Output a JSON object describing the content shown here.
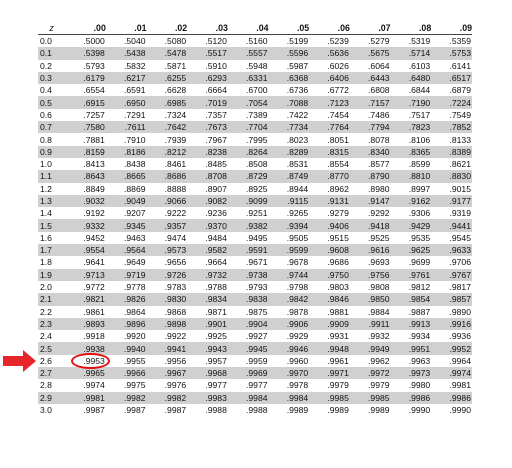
{
  "table": {
    "z_header": "z",
    "columns": [
      ".00",
      ".01",
      ".02",
      ".03",
      ".04",
      ".05",
      ".06",
      ".07",
      ".08",
      ".09"
    ],
    "rows": [
      {
        "z": "0.0",
        "values": [
          ".5000",
          ".5040",
          ".5080",
          ".5120",
          ".5160",
          ".5199",
          ".5239",
          ".5279",
          ".5319",
          ".5359"
        ]
      },
      {
        "z": "0.1",
        "values": [
          ".5398",
          ".5438",
          ".5478",
          ".5517",
          ".5557",
          ".5596",
          ".5636",
          ".5675",
          ".5714",
          ".5753"
        ]
      },
      {
        "z": "0.2",
        "values": [
          ".5793",
          ".5832",
          ".5871",
          ".5910",
          ".5948",
          ".5987",
          ".6026",
          ".6064",
          ".6103",
          ".6141"
        ]
      },
      {
        "z": "0.3",
        "values": [
          ".6179",
          ".6217",
          ".6255",
          ".6293",
          ".6331",
          ".6368",
          ".6406",
          ".6443",
          ".6480",
          ".6517"
        ]
      },
      {
        "z": "0.4",
        "values": [
          ".6554",
          ".6591",
          ".6628",
          ".6664",
          ".6700",
          ".6736",
          ".6772",
          ".6808",
          ".6844",
          ".6879"
        ]
      },
      {
        "z": "0.5",
        "values": [
          ".6915",
          ".6950",
          ".6985",
          ".7019",
          ".7054",
          ".7088",
          ".7123",
          ".7157",
          ".7190",
          ".7224"
        ]
      },
      {
        "z": "0.6",
        "values": [
          ".7257",
          ".7291",
          ".7324",
          ".7357",
          ".7389",
          ".7422",
          ".7454",
          ".7486",
          ".7517",
          ".7549"
        ]
      },
      {
        "z": "0.7",
        "values": [
          ".7580",
          ".7611",
          ".7642",
          ".7673",
          ".7704",
          ".7734",
          ".7764",
          ".7794",
          ".7823",
          ".7852"
        ]
      },
      {
        "z": "0.8",
        "values": [
          ".7881",
          ".7910",
          ".7939",
          ".7967",
          ".7995",
          ".8023",
          ".8051",
          ".8078",
          ".8106",
          ".8133"
        ]
      },
      {
        "z": "0.9",
        "values": [
          ".8159",
          ".8186",
          ".8212",
          ".8238",
          ".8264",
          ".8289",
          ".8315",
          ".8340",
          ".8365",
          ".8389"
        ]
      },
      {
        "z": "1.0",
        "values": [
          ".8413",
          ".8438",
          ".8461",
          ".8485",
          ".8508",
          ".8531",
          ".8554",
          ".8577",
          ".8599",
          ".8621"
        ]
      },
      {
        "z": "1.1",
        "values": [
          ".8643",
          ".8665",
          ".8686",
          ".8708",
          ".8729",
          ".8749",
          ".8770",
          ".8790",
          ".8810",
          ".8830"
        ]
      },
      {
        "z": "1.2",
        "values": [
          ".8849",
          ".8869",
          ".8888",
          ".8907",
          ".8925",
          ".8944",
          ".8962",
          ".8980",
          ".8997",
          ".9015"
        ]
      },
      {
        "z": "1.3",
        "values": [
          ".9032",
          ".9049",
          ".9066",
          ".9082",
          ".9099",
          ".9115",
          ".9131",
          ".9147",
          ".9162",
          ".9177"
        ]
      },
      {
        "z": "1.4",
        "values": [
          ".9192",
          ".9207",
          ".9222",
          ".9236",
          ".9251",
          ".9265",
          ".9279",
          ".9292",
          ".9306",
          ".9319"
        ]
      },
      {
        "z": "1.5",
        "values": [
          ".9332",
          ".9345",
          ".9357",
          ".9370",
          ".9382",
          ".9394",
          ".9406",
          ".9418",
          ".9429",
          ".9441"
        ]
      },
      {
        "z": "1.6",
        "values": [
          ".9452",
          ".9463",
          ".9474",
          ".9484",
          ".9495",
          ".9505",
          ".9515",
          ".9525",
          ".9535",
          ".9545"
        ]
      },
      {
        "z": "1.7",
        "values": [
          ".9554",
          ".9564",
          ".9573",
          ".9582",
          ".9591",
          ".9599",
          ".9608",
          ".9616",
          ".9625",
          ".9633"
        ]
      },
      {
        "z": "1.8",
        "values": [
          ".9641",
          ".9649",
          ".9656",
          ".9664",
          ".9671",
          ".9678",
          ".9686",
          ".9693",
          ".9699",
          ".9706"
        ]
      },
      {
        "z": "1.9",
        "values": [
          ".9713",
          ".9719",
          ".9726",
          ".9732",
          ".9738",
          ".9744",
          ".9750",
          ".9756",
          ".9761",
          ".9767"
        ]
      },
      {
        "z": "2.0",
        "values": [
          ".9772",
          ".9778",
          ".9783",
          ".9788",
          ".9793",
          ".9798",
          ".9803",
          ".9808",
          ".9812",
          ".9817"
        ]
      },
      {
        "z": "2.1",
        "values": [
          ".9821",
          ".9826",
          ".9830",
          ".9834",
          ".9838",
          ".9842",
          ".9846",
          ".9850",
          ".9854",
          ".9857"
        ]
      },
      {
        "z": "2.2",
        "values": [
          ".9861",
          ".9864",
          ".9868",
          ".9871",
          ".9875",
          ".9878",
          ".9881",
          ".9884",
          ".9887",
          ".9890"
        ]
      },
      {
        "z": "2.3",
        "values": [
          ".9893",
          ".9896",
          ".9898",
          ".9901",
          ".9904",
          ".9906",
          ".9909",
          ".9911",
          ".9913",
          ".9916"
        ]
      },
      {
        "z": "2.4",
        "values": [
          ".9918",
          ".9920",
          ".9922",
          ".9925",
          ".9927",
          ".9929",
          ".9931",
          ".9932",
          ".9934",
          ".9936"
        ]
      },
      {
        "z": "2.5",
        "values": [
          ".9938",
          ".9940",
          ".9941",
          ".9943",
          ".9945",
          ".9946",
          ".9948",
          ".9949",
          ".9951",
          ".9952"
        ]
      },
      {
        "z": "2.6",
        "values": [
          ".9953",
          ".9955",
          ".9956",
          ".9957",
          ".9959",
          ".9960",
          ".9961",
          ".9962",
          ".9963",
          ".9964"
        ]
      },
      {
        "z": "2.7",
        "values": [
          ".9965",
          ".9966",
          ".9967",
          ".9968",
          ".9969",
          ".9970",
          ".9971",
          ".9972",
          ".9973",
          ".9974"
        ]
      },
      {
        "z": "2.8",
        "values": [
          ".9974",
          ".9975",
          ".9976",
          ".9977",
          ".9977",
          ".9978",
          ".9979",
          ".9979",
          ".9980",
          ".9981"
        ]
      },
      {
        "z": "2.9",
        "values": [
          ".9981",
          ".9982",
          ".9982",
          ".9983",
          ".9984",
          ".9984",
          ".9985",
          ".9985",
          ".9986",
          ".9986"
        ]
      },
      {
        "z": "3.0",
        "values": [
          ".9987",
          ".9987",
          ".9987",
          ".9988",
          ".9988",
          ".9989",
          ".9989",
          ".9989",
          ".9990",
          ".9990"
        ]
      }
    ]
  },
  "annotation": {
    "arrow_icon": "arrow-right-icon",
    "arrow_color": "#e8252b",
    "circle_color": "#e11010",
    "highlighted_row_z": "2.6",
    "highlighted_value": ".9953"
  },
  "colors": {
    "shade": "#d0d0d0",
    "background": "#ffffff",
    "text": "#111111"
  }
}
